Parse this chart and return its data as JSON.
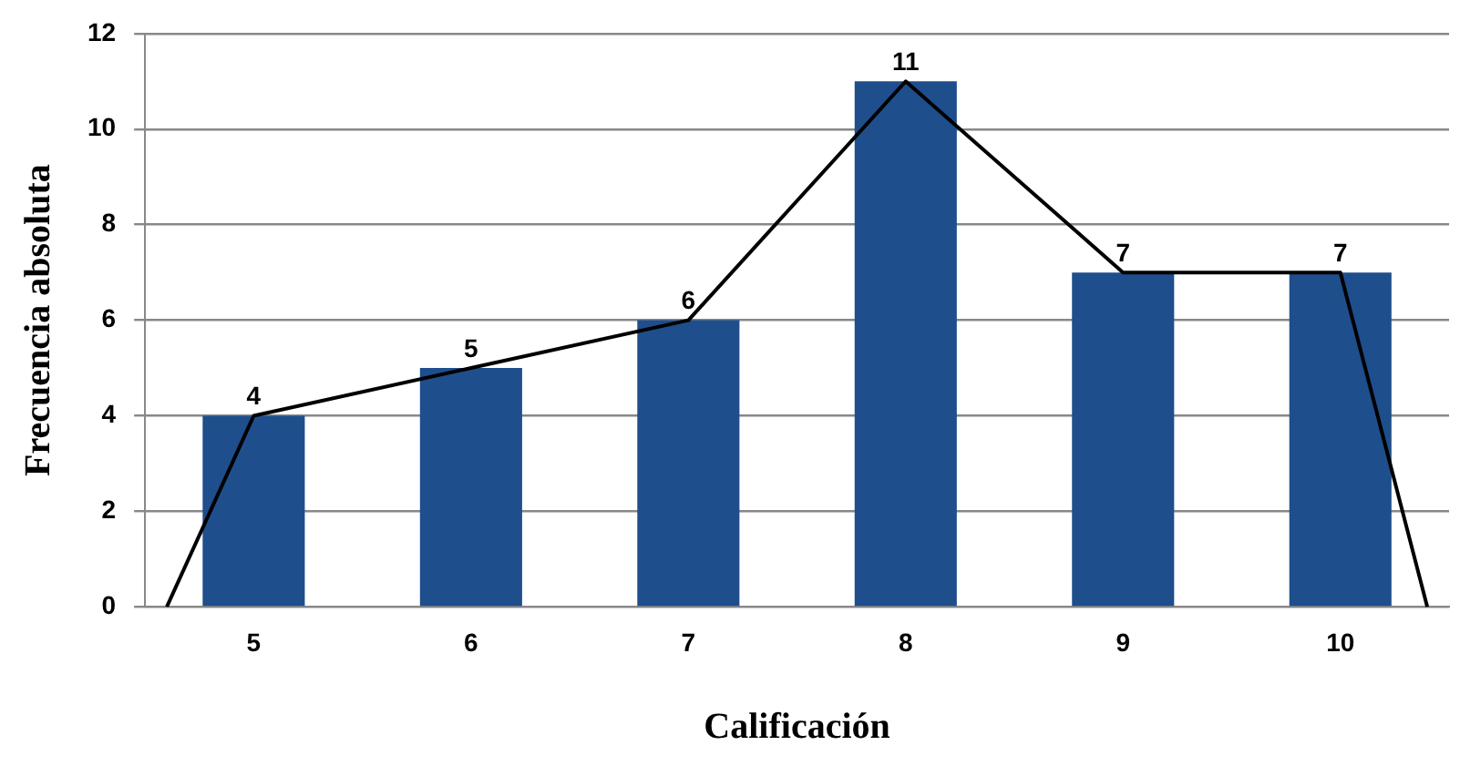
{
  "chart_data": {
    "type": "bar",
    "xlabel": "Calificación",
    "ylabel": "Frecuencia absoluta",
    "x": [
      5,
      6,
      7,
      8,
      9,
      10
    ],
    "xlim": [
      4.5,
      10.5
    ],
    "xticks": [
      5,
      6,
      7,
      8,
      9,
      10
    ],
    "ylim": [
      0,
      12
    ],
    "yticks": [
      0,
      2,
      4,
      6,
      8,
      10,
      12
    ],
    "grid": "y",
    "legend": false,
    "series": [
      {
        "color": "#1f4e8c",
        "values": [
          4,
          5,
          6,
          11,
          7,
          7
        ],
        "value_labels": [
          "4",
          "5",
          "6",
          "11",
          "7",
          "7"
        ]
      },
      {
        "type": "line",
        "color": "#000000",
        "marker": "none",
        "x": [
          4.6,
          5,
          6,
          7,
          8,
          9,
          10,
          10.4
        ],
        "values": [
          0,
          4,
          5,
          6,
          11,
          7,
          7,
          0
        ]
      }
    ]
  }
}
